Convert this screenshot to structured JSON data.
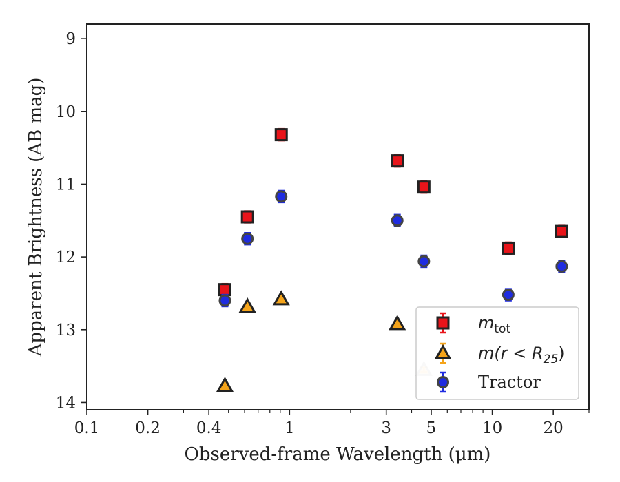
{
  "chart_data": {
    "type": "scatter",
    "xlabel": "Observed-frame Wavelength (μm)",
    "ylabel": "Apparent Brightness (AB mag)",
    "x_scale": "log",
    "xlim": [
      0.1,
      30
    ],
    "ylim": [
      14.1,
      8.8
    ],
    "y_inverted": true,
    "x_ticks": [
      {
        "value": 0.1,
        "label": "0.1"
      },
      {
        "value": 0.2,
        "label": "0.2"
      },
      {
        "value": 0.4,
        "label": "0.4"
      },
      {
        "value": 1,
        "label": "1"
      },
      {
        "value": 3,
        "label": "3"
      },
      {
        "value": 5,
        "label": "5"
      },
      {
        "value": 10,
        "label": "10"
      },
      {
        "value": 20,
        "label": "20"
      }
    ],
    "y_ticks": [
      {
        "value": 9,
        "label": "9"
      },
      {
        "value": 10,
        "label": "10"
      },
      {
        "value": 11,
        "label": "11"
      },
      {
        "value": 12,
        "label": "12"
      },
      {
        "value": 13,
        "label": "13"
      },
      {
        "value": 14,
        "label": "14"
      }
    ],
    "grid": false,
    "legend_position": "lower-right",
    "series": [
      {
        "name": "m_tot",
        "marker": "square",
        "color": "#e8141a",
        "edge_color": "#222222",
        "errorbar_color": "#e8141a",
        "points": [
          {
            "x": 0.48,
            "y": 12.45,
            "err": 0.08
          },
          {
            "x": 0.62,
            "y": 11.45,
            "err": 0.08
          },
          {
            "x": 0.91,
            "y": 10.32,
            "err": 0.08
          },
          {
            "x": 3.4,
            "y": 10.68,
            "err": 0.08
          },
          {
            "x": 4.6,
            "y": 11.04,
            "err": 0.08
          },
          {
            "x": 12.0,
            "y": 11.88,
            "err": 0.08
          },
          {
            "x": 22.0,
            "y": 11.65,
            "err": 0.08
          }
        ]
      },
      {
        "name": "m(r < R_25)",
        "marker": "triangle",
        "color": "#f5a41a",
        "edge_color": "#222222",
        "errorbar_color": "#f5a41a",
        "points": [
          {
            "x": 0.48,
            "y": 13.77,
            "err": 0.03
          },
          {
            "x": 0.62,
            "y": 12.68,
            "err": 0.03
          },
          {
            "x": 0.91,
            "y": 12.58,
            "err": 0.03
          },
          {
            "x": 3.4,
            "y": 12.92,
            "err": 0.03
          },
          {
            "x": 4.6,
            "y": 13.55,
            "err": 0.03,
            "faded": true
          }
        ]
      },
      {
        "name": "Tractor",
        "marker": "circle",
        "color": "#1f2ce0",
        "edge_color": "#444444",
        "errorbar_color": "#1f2ce0",
        "points": [
          {
            "x": 0.48,
            "y": 12.6,
            "err": 0.08
          },
          {
            "x": 0.62,
            "y": 11.75,
            "err": 0.08
          },
          {
            "x": 0.91,
            "y": 11.17,
            "err": 0.08
          },
          {
            "x": 3.4,
            "y": 11.5,
            "err": 0.08
          },
          {
            "x": 4.6,
            "y": 12.06,
            "err": 0.08
          },
          {
            "x": 12.0,
            "y": 12.52,
            "err": 0.08
          },
          {
            "x": 22.0,
            "y": 12.13,
            "err": 0.08
          }
        ]
      }
    ],
    "legend": [
      {
        "series": 0,
        "label_main": "m",
        "label_sub": "tot"
      },
      {
        "series": 1,
        "label_pre": "m(r < R",
        "label_sub": "25",
        "label_post": ")"
      },
      {
        "series": 2,
        "label_main": "Tractor"
      }
    ]
  }
}
